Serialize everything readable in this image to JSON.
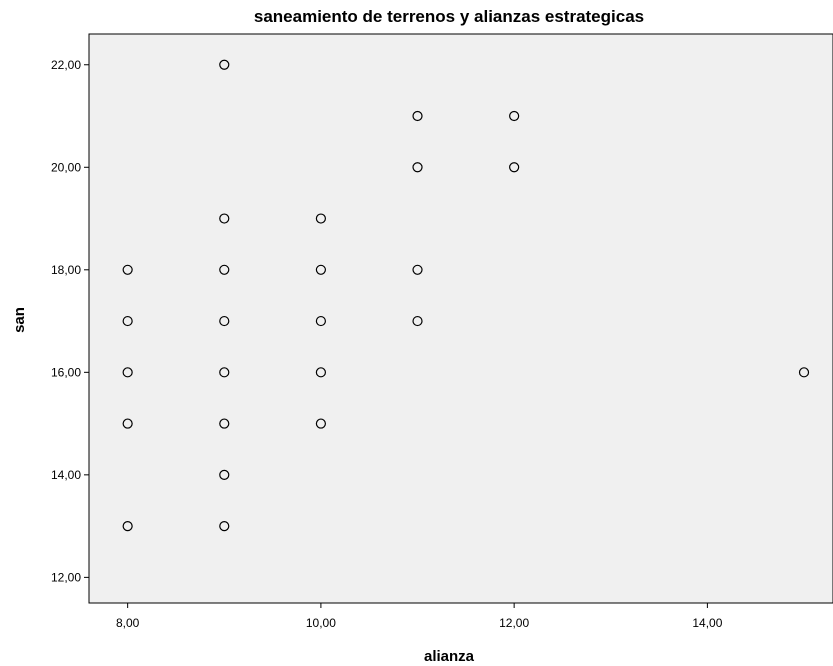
{
  "chart_data": {
    "type": "scatter",
    "title": "saneamiento de terrenos y alianzas estrategicas",
    "xlabel": "alianza",
    "ylabel": "san",
    "xlim": [
      7.6,
      15.3
    ],
    "ylim": [
      11.5,
      22.6
    ],
    "x_ticks": [
      8,
      10,
      12,
      14
    ],
    "x_tick_labels": [
      "8,00",
      "10,00",
      "12,00",
      "14,00"
    ],
    "y_ticks": [
      12,
      14,
      16,
      18,
      20,
      22
    ],
    "y_tick_labels": [
      "12,00",
      "14,00",
      "16,00",
      "18,00",
      "20,00",
      "22,00"
    ],
    "grid": false,
    "background_color": "#f0f0f0",
    "marker_color": "#000000",
    "series": [
      {
        "points": [
          {
            "x": 8,
            "y": 13
          },
          {
            "x": 8,
            "y": 15
          },
          {
            "x": 8,
            "y": 16
          },
          {
            "x": 8,
            "y": 17
          },
          {
            "x": 8,
            "y": 18
          },
          {
            "x": 9,
            "y": 13
          },
          {
            "x": 9,
            "y": 14
          },
          {
            "x": 9,
            "y": 15
          },
          {
            "x": 9,
            "y": 16
          },
          {
            "x": 9,
            "y": 17
          },
          {
            "x": 9,
            "y": 18
          },
          {
            "x": 9,
            "y": 19
          },
          {
            "x": 9,
            "y": 22
          },
          {
            "x": 10,
            "y": 15
          },
          {
            "x": 10,
            "y": 16
          },
          {
            "x": 10,
            "y": 17
          },
          {
            "x": 10,
            "y": 18
          },
          {
            "x": 10,
            "y": 19
          },
          {
            "x": 11,
            "y": 17
          },
          {
            "x": 11,
            "y": 18
          },
          {
            "x": 11,
            "y": 20
          },
          {
            "x": 11,
            "y": 21
          },
          {
            "x": 12,
            "y": 20
          },
          {
            "x": 12,
            "y": 21
          },
          {
            "x": 15,
            "y": 16
          }
        ]
      }
    ]
  }
}
